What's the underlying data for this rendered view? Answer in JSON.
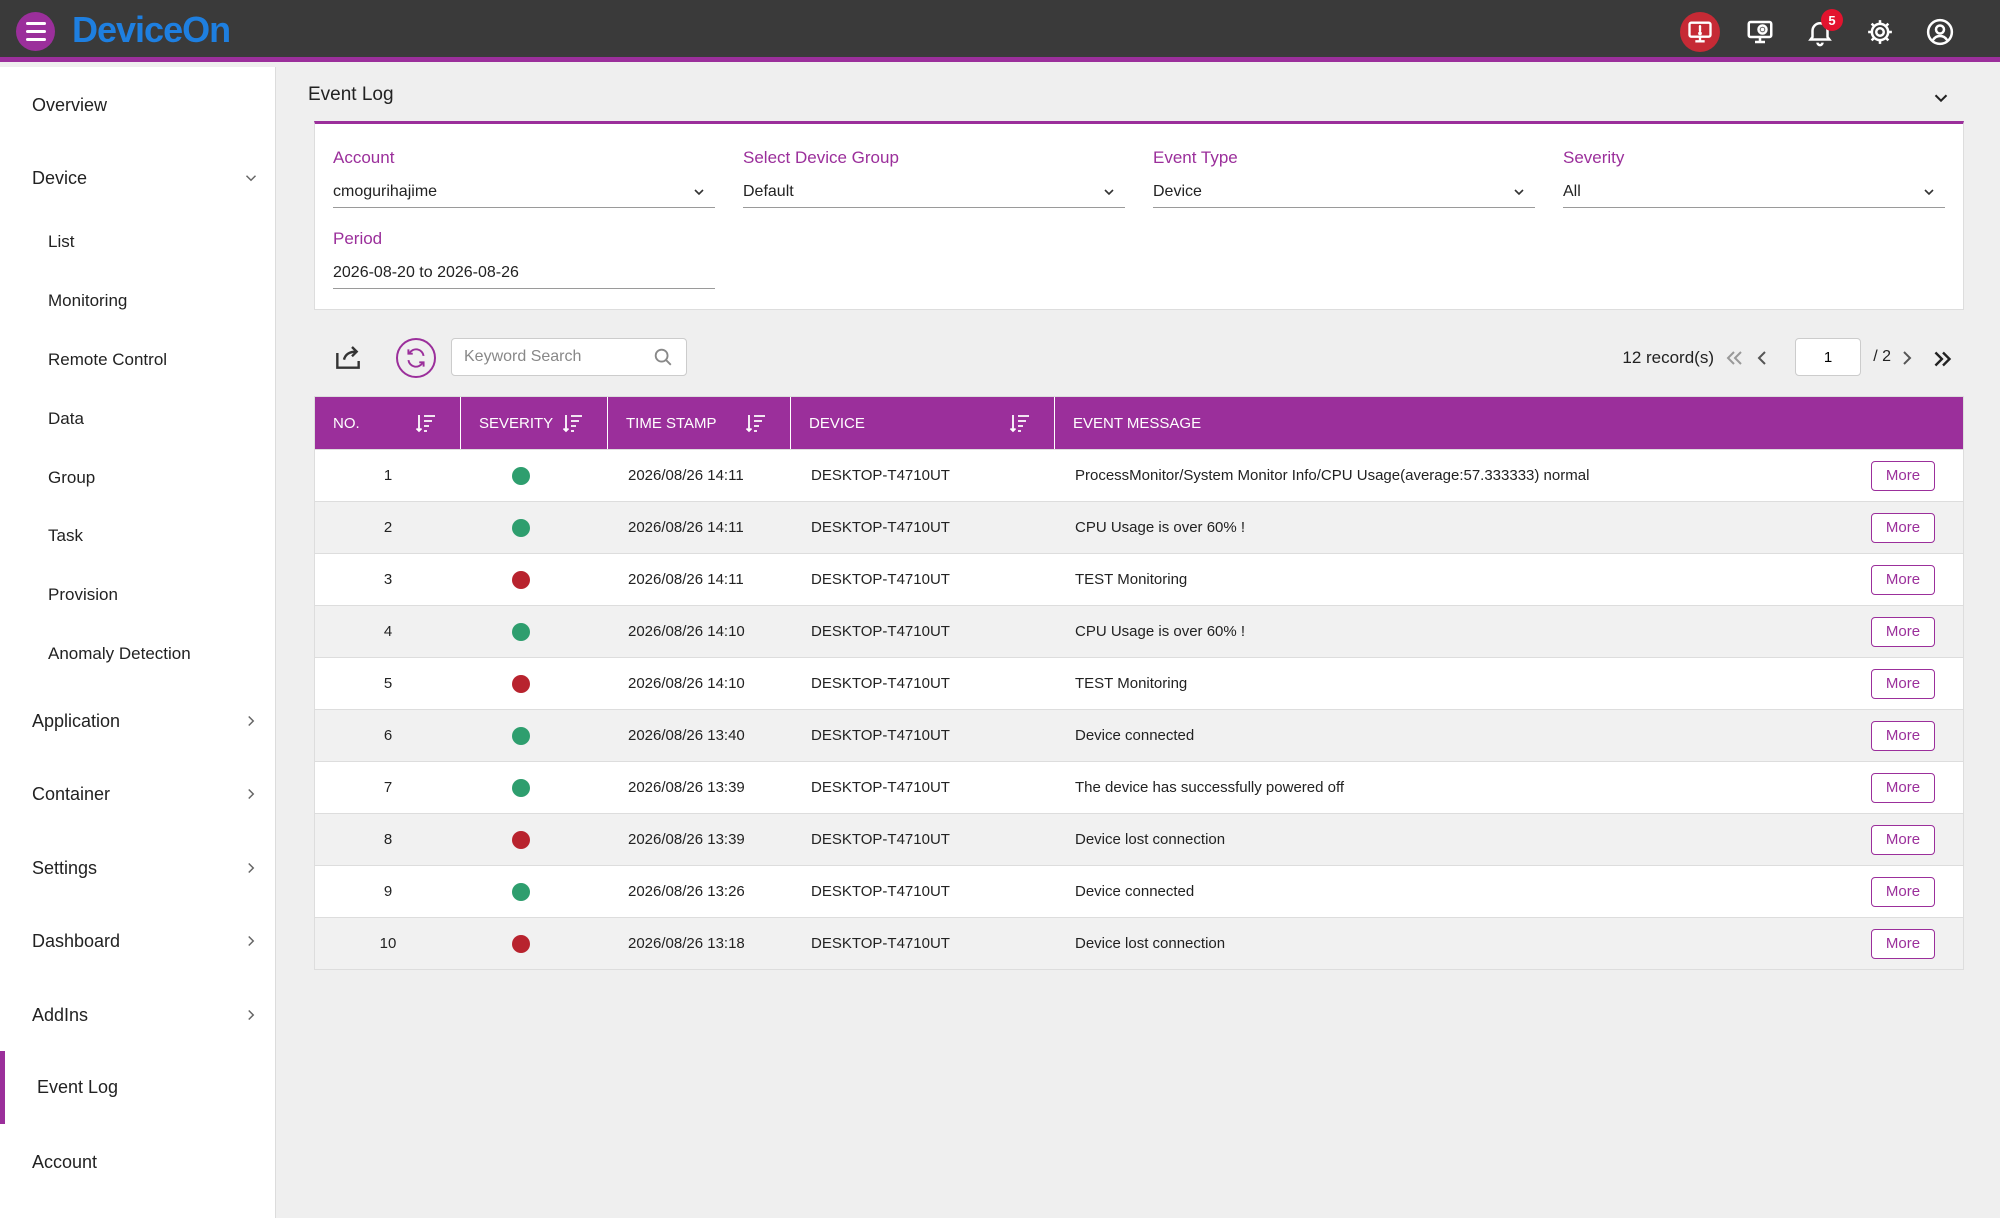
{
  "app": {
    "logo": "DeviceOn",
    "notification_count": "5"
  },
  "sidebar": {
    "items": [
      {
        "label": "Overview",
        "level": "top"
      },
      {
        "label": "Device",
        "level": "top"
      },
      {
        "label": "List",
        "level": "sub"
      },
      {
        "label": "Monitoring",
        "level": "sub"
      },
      {
        "label": "Remote Control",
        "level": "sub"
      },
      {
        "label": "Data",
        "level": "sub"
      },
      {
        "label": "Group",
        "level": "sub"
      },
      {
        "label": "Task",
        "level": "sub"
      },
      {
        "label": "Provision",
        "level": "sub"
      },
      {
        "label": "Anomaly Detection",
        "level": "sub"
      },
      {
        "label": "Application",
        "level": "top"
      },
      {
        "label": "Container",
        "level": "top"
      },
      {
        "label": "Settings",
        "level": "top"
      },
      {
        "label": "Dashboard",
        "level": "top"
      },
      {
        "label": "AddIns",
        "level": "top"
      },
      {
        "label": "Event Log",
        "level": "top",
        "active": true
      },
      {
        "label": "Account",
        "level": "top"
      }
    ]
  },
  "page": {
    "title": "Event Log"
  },
  "filters": {
    "account": {
      "label": "Account",
      "value": "cmogurihajime"
    },
    "device_group": {
      "label": "Select Device Group",
      "value": "Default"
    },
    "event_type": {
      "label": "Event Type",
      "value": "Device"
    },
    "severity": {
      "label": "Severity",
      "value": "All"
    },
    "period": {
      "label": "Period",
      "value": "2026-08-20 to 2026-08-26"
    }
  },
  "toolbar": {
    "search_placeholder": "Keyword Search",
    "records": "12 record(s)",
    "page_current": "1",
    "page_total": "/ 2"
  },
  "table": {
    "headers": {
      "no": "NO.",
      "severity": "SEVERITY",
      "timestamp": "TIME STAMP",
      "device": "DEVICE",
      "message": "EVENT MESSAGE"
    },
    "more_label": "More",
    "severity_colors": {
      "normal": "#2e9e6e",
      "error": "#b8232e"
    },
    "rows": [
      {
        "no": "1",
        "severity": "normal",
        "timestamp": "2026/08/26 14:11",
        "device": "DESKTOP-T4710UT",
        "message": "ProcessMonitor/System Monitor Info/CPU Usage(average:57.333333) normal"
      },
      {
        "no": "2",
        "severity": "normal",
        "timestamp": "2026/08/26 14:11",
        "device": "DESKTOP-T4710UT",
        "message": "CPU Usage is over 60% !"
      },
      {
        "no": "3",
        "severity": "error",
        "timestamp": "2026/08/26 14:11",
        "device": "DESKTOP-T4710UT",
        "message": "TEST Monitoring"
      },
      {
        "no": "4",
        "severity": "normal",
        "timestamp": "2026/08/26 14:10",
        "device": "DESKTOP-T4710UT",
        "message": "CPU Usage is over 60% !"
      },
      {
        "no": "5",
        "severity": "error",
        "timestamp": "2026/08/26 14:10",
        "device": "DESKTOP-T4710UT",
        "message": "TEST Monitoring"
      },
      {
        "no": "6",
        "severity": "normal",
        "timestamp": "2026/08/26 13:40",
        "device": "DESKTOP-T4710UT",
        "message": "Device connected"
      },
      {
        "no": "7",
        "severity": "normal",
        "timestamp": "2026/08/26 13:39",
        "device": "DESKTOP-T4710UT",
        "message": "The device has successfully powered off"
      },
      {
        "no": "8",
        "severity": "error",
        "timestamp": "2026/08/26 13:39",
        "device": "DESKTOP-T4710UT",
        "message": "Device lost connection"
      },
      {
        "no": "9",
        "severity": "normal",
        "timestamp": "2026/08/26 13:26",
        "device": "DESKTOP-T4710UT",
        "message": "Device connected"
      },
      {
        "no": "10",
        "severity": "error",
        "timestamp": "2026/08/26 13:18",
        "device": "DESKTOP-T4710UT",
        "message": "Device lost connection"
      }
    ]
  }
}
